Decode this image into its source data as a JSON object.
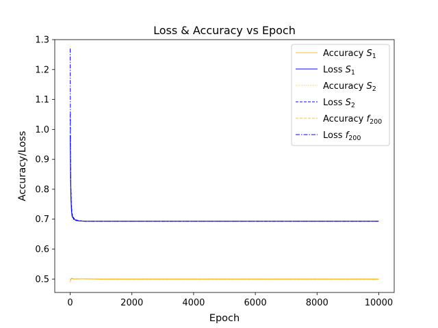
{
  "chart_data": {
    "type": "line",
    "title": "Loss & Accuracy vs Epoch",
    "xlabel": "Epoch",
    "ylabel": "Accuracy/Loss",
    "xlim": [
      -500,
      10500
    ],
    "ylim": [
      0.455,
      1.3
    ],
    "xticks": [
      0,
      2000,
      4000,
      6000,
      8000,
      10000
    ],
    "yticks": [
      0.5,
      0.6,
      0.7,
      0.8,
      0.9,
      1.0,
      1.1,
      1.2,
      1.3
    ],
    "xtick_labels": [
      "0",
      "2000",
      "4000",
      "6000",
      "8000",
      "10000"
    ],
    "ytick_labels": [
      "0.5",
      "0.6",
      "0.7",
      "0.8",
      "0.9",
      "1.0",
      "1.1",
      "1.2",
      "1.3"
    ],
    "grid": false,
    "legend_position": "top-right",
    "series": [
      {
        "name": "Accuracy S1",
        "label_base": "Accuracy ",
        "label_var": "S",
        "label_sub": "1",
        "color": "#ffa500",
        "dash": "solid",
        "width": 0.8,
        "x": [
          0,
          20,
          50,
          100,
          200,
          400,
          1000,
          2000,
          4000,
          6000,
          8000,
          10000
        ],
        "y": [
          0.5,
          0.497,
          0.503,
          0.501,
          0.5,
          0.501,
          0.5,
          0.5,
          0.5,
          0.5,
          0.5,
          0.5
        ]
      },
      {
        "name": "Loss S1",
        "label_base": "Loss ",
        "label_var": "S",
        "label_sub": "1",
        "color": "#0000ff",
        "dash": "solid",
        "width": 1.0,
        "x": [
          0,
          10,
          20,
          40,
          60,
          100,
          150,
          200,
          300,
          500,
          1000,
          2000,
          4000,
          6000,
          8000,
          10000
        ],
        "y": [
          0.98,
          0.86,
          0.78,
          0.73,
          0.71,
          0.703,
          0.698,
          0.696,
          0.694,
          0.693,
          0.693,
          0.693,
          0.693,
          0.693,
          0.693,
          0.693
        ]
      },
      {
        "name": "Accuracy S2",
        "label_base": "Accuracy ",
        "label_var": "S",
        "label_sub": "2",
        "color": "#ffa500",
        "dash": "dotted",
        "width": 0.8,
        "x": [
          0,
          20,
          50,
          100,
          200,
          500,
          1000,
          4000,
          8000,
          10000
        ],
        "y": [
          0.502,
          0.499,
          0.502,
          0.5,
          0.501,
          0.5,
          0.5,
          0.5,
          0.5,
          0.5
        ]
      },
      {
        "name": "Loss S2",
        "label_base": "Loss ",
        "label_var": "S",
        "label_sub": "2",
        "color": "#0000ff",
        "dash": "dashed",
        "width": 1.0,
        "x": [
          0,
          10,
          20,
          40,
          60,
          100,
          150,
          200,
          300,
          500,
          1000,
          4000,
          8000,
          10000
        ],
        "y": [
          1.05,
          0.92,
          0.82,
          0.75,
          0.72,
          0.706,
          0.7,
          0.697,
          0.695,
          0.693,
          0.693,
          0.693,
          0.693,
          0.693
        ]
      },
      {
        "name": "Accuracy f200",
        "label_base": "Accuracy ",
        "label_var": "f",
        "label_sub": "200",
        "color": "#ffa500",
        "dash": "dashed",
        "width": 0.8,
        "x": [
          0,
          20,
          50,
          100,
          300,
          1000,
          5000,
          10000
        ],
        "y": [
          0.49,
          0.5,
          0.502,
          0.5,
          0.501,
          0.5,
          0.5,
          0.5
        ]
      },
      {
        "name": "Loss f200",
        "label_base": "Loss ",
        "label_var": "f",
        "label_sub": "200",
        "color": "#0000ff",
        "dash": "dashdot",
        "width": 1.0,
        "x": [
          0,
          5,
          10,
          20,
          30,
          50,
          80,
          120,
          200,
          300,
          500,
          1000,
          4000,
          8000,
          10000
        ],
        "y": [
          1.27,
          1.1,
          0.95,
          0.82,
          0.76,
          0.72,
          0.705,
          0.698,
          0.695,
          0.694,
          0.693,
          0.693,
          0.693,
          0.693,
          0.693
        ]
      }
    ]
  }
}
